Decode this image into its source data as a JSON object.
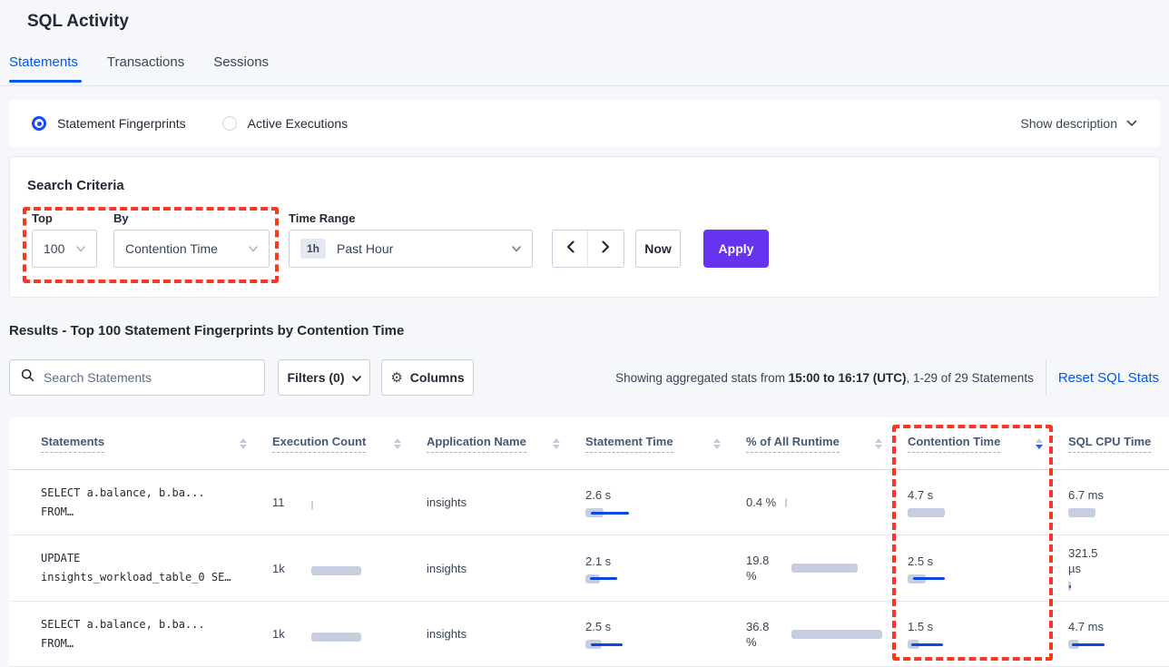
{
  "page": {
    "title": "SQL Activity"
  },
  "tabs": [
    {
      "label": "Statements",
      "active": true
    },
    {
      "label": "Transactions",
      "active": false
    },
    {
      "label": "Sessions",
      "active": false
    }
  ],
  "view_toggle": {
    "options": [
      {
        "label": "Statement Fingerprints",
        "selected": true
      },
      {
        "label": "Active Executions",
        "selected": false
      }
    ],
    "show_description": "Show description"
  },
  "search_criteria": {
    "title": "Search Criteria",
    "top": {
      "label": "Top",
      "value": "100"
    },
    "by": {
      "label": "By",
      "value": "Contention Time"
    },
    "time_range": {
      "label": "Time Range",
      "badge": "1h",
      "value": "Past Hour"
    },
    "now_label": "Now",
    "apply_label": "Apply"
  },
  "results": {
    "heading": "Results - Top 100 Statement Fingerprints by Contention Time",
    "search_placeholder": "Search Statements",
    "filters_label": "Filters (0)",
    "columns_label": "Columns",
    "showing_prefix": "Showing aggregated stats from ",
    "showing_bold": "15:00 to 16:17 (UTC)",
    "showing_suffix": ", 1-29 of 29 Statements",
    "reset_label": "Reset SQL Stats"
  },
  "icons": {
    "gear": "⚙"
  },
  "colors": {
    "accent_blue": "#0156F5",
    "apply_purple": "#6633EE",
    "annotation_red": "#F63A21",
    "bar_gray": "#C7CEE0",
    "bar_blue": "#0B46E0"
  },
  "table": {
    "headers": [
      {
        "label": "Statements",
        "sort": "none"
      },
      {
        "label": "Execution Count",
        "sort": "none"
      },
      {
        "label": "Application Name",
        "sort": "none"
      },
      {
        "label": "Statement Time",
        "sort": "none"
      },
      {
        "label": "% of All Runtime",
        "sort": "none"
      },
      {
        "label": "Contention Time",
        "sort": "desc"
      },
      {
        "label": "SQL CPU Time",
        "sort": "none"
      }
    ],
    "rows": [
      {
        "statement_line1": "SELECT a.balance, b.ba...",
        "statement_line2": "FROM…",
        "execution_count": "11",
        "application": "insights",
        "statement_time": "2.6 s",
        "pct_runtime": "0.4 %",
        "contention_time": "4.7 s",
        "cpu_time": "6.7 ms",
        "bars": {
          "exec": {
            "g": 2,
            "b": 0
          },
          "stime": {
            "g": 20,
            "b": 42
          },
          "pct": {
            "g": 2,
            "b": 0
          },
          "cont": {
            "g": 41,
            "b": 0
          },
          "cpu": {
            "g": 30,
            "b": 0
          }
        }
      },
      {
        "statement_line1": "UPDATE",
        "statement_line2": "insights_workload_table_0 SE…",
        "execution_count": "1k",
        "application": "insights",
        "statement_time": "2.1 s",
        "pct_runtime": "19.8 %",
        "contention_time": "2.5 s",
        "cpu_time": "321.5 µs",
        "bars": {
          "exec": {
            "g": 55,
            "b": 0
          },
          "stime": {
            "g": 16,
            "b": 30
          },
          "pct": {
            "g": 73,
            "b": 0
          },
          "cont": {
            "g": 20,
            "b": 35
          },
          "cpu": {
            "g": 3,
            "b": 2
          }
        }
      },
      {
        "statement_line1": "SELECT a.balance, b.ba...",
        "statement_line2": "FROM…",
        "execution_count": "1k",
        "application": "insights",
        "statement_time": "2.5 s",
        "pct_runtime": "36.8 %",
        "contention_time": "1.5 s",
        "cpu_time": "4.7 ms",
        "bars": {
          "exec": {
            "g": 55,
            "b": 0
          },
          "stime": {
            "g": 18,
            "b": 35
          },
          "pct": {
            "g": 100,
            "b": 0
          },
          "cont": {
            "g": 13,
            "b": 35
          },
          "cpu": {
            "g": 12,
            "b": 36
          }
        }
      }
    ]
  }
}
